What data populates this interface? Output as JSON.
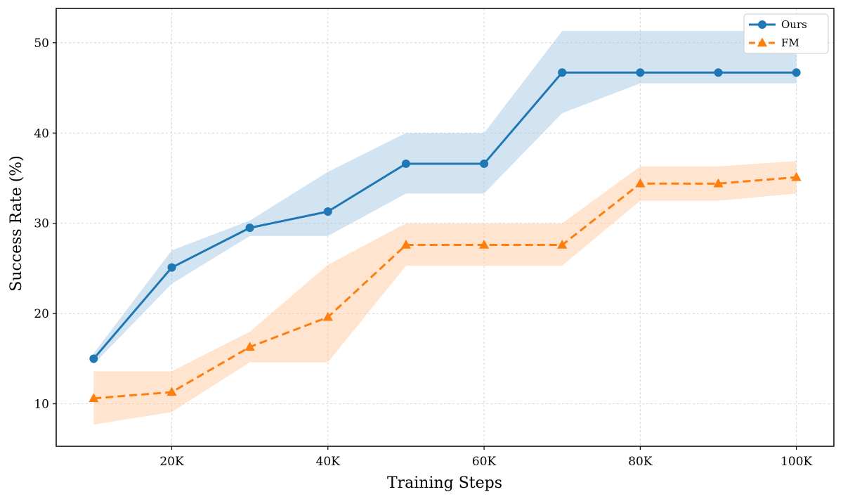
{
  "chart_data": {
    "type": "line",
    "title": "",
    "xlabel": "Training Steps",
    "ylabel": "Success Rate (%)",
    "x": [
      10000,
      20000,
      30000,
      40000,
      50000,
      60000,
      70000,
      80000,
      90000,
      100000
    ],
    "xlim": [
      5200,
      104800
    ],
    "ylim": [
      5.3,
      53.8
    ],
    "xticks": [
      20000,
      40000,
      60000,
      80000,
      100000
    ],
    "xtick_labels": [
      "20K",
      "40K",
      "60K",
      "80K",
      "100K"
    ],
    "yticks": [
      10,
      20,
      30,
      40,
      50
    ],
    "ytick_labels": [
      "10",
      "20",
      "30",
      "40",
      "50"
    ],
    "grid": true,
    "legend_position": "top-right",
    "series": [
      {
        "name": "Ours",
        "color": "#1f77b4",
        "band_color": "#a6c8e3",
        "marker": "circle",
        "linestyle": "solid",
        "values": [
          15.0,
          25.1,
          29.5,
          31.3,
          36.6,
          36.6,
          46.7,
          46.7,
          46.7,
          46.7
        ],
        "lower": [
          14.4,
          23.3,
          28.6,
          28.6,
          33.3,
          33.3,
          42.2,
          45.5,
          45.5,
          45.5
        ],
        "upper": [
          15.6,
          27.0,
          30.3,
          35.7,
          40.0,
          40.0,
          51.3,
          51.3,
          51.3,
          51.3
        ]
      },
      {
        "name": "FM",
        "color": "#ff7f0e",
        "band_color": "#ffc9a0",
        "marker": "triangle",
        "linestyle": "dashed",
        "values": [
          10.6,
          11.3,
          16.3,
          19.6,
          27.6,
          27.6,
          27.6,
          34.4,
          34.4,
          35.1
        ],
        "lower": [
          7.7,
          9.1,
          14.6,
          14.6,
          25.3,
          25.3,
          25.3,
          32.5,
          32.5,
          33.3
        ],
        "upper": [
          13.6,
          13.6,
          18.0,
          25.4,
          30.0,
          30.0,
          30.0,
          36.3,
          36.3,
          36.9
        ]
      }
    ]
  }
}
